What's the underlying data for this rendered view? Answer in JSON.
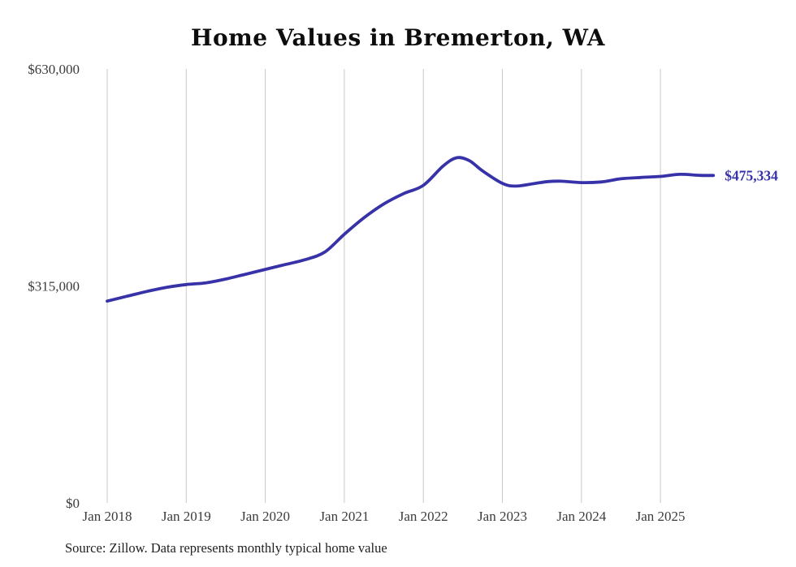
{
  "page": {
    "title": "Home Values in Bremerton, WA",
    "source_note": "Source: Zillow. Data represents monthly typical home value"
  },
  "chart_data": {
    "type": "line",
    "title": "Home Values in Bremerton, WA",
    "xlabel": "",
    "ylabel": "",
    "ylim": [
      0,
      630000
    ],
    "grid": "vertical-only",
    "legend": "none",
    "line_color": "#3732a8",
    "grid_color": "#c9c9c9",
    "end_label": "$475,334",
    "end_value": 475334,
    "y_ticks": [
      {
        "value": 630000,
        "label": "$630,000"
      },
      {
        "value": 315000,
        "label": "$315,000"
      },
      {
        "value": 0,
        "label": "$0"
      }
    ],
    "x_ticks": [
      {
        "t": 2018,
        "label": "Jan 2018"
      },
      {
        "t": 2019,
        "label": "Jan 2019"
      },
      {
        "t": 2020,
        "label": "Jan 2020"
      },
      {
        "t": 2021,
        "label": "Jan 2021"
      },
      {
        "t": 2022,
        "label": "Jan 2022"
      },
      {
        "t": 2023,
        "label": "Jan 2023"
      },
      {
        "t": 2024,
        "label": "Jan 2024"
      },
      {
        "t": 2025,
        "label": "Jan 2025"
      }
    ],
    "series": [
      {
        "name": "Typical home value",
        "points": [
          {
            "t": 2018.0,
            "v": 293000
          },
          {
            "t": 2018.25,
            "v": 300000
          },
          {
            "t": 2018.5,
            "v": 307000
          },
          {
            "t": 2018.75,
            "v": 313000
          },
          {
            "t": 2019.0,
            "v": 317000
          },
          {
            "t": 2019.25,
            "v": 319500
          },
          {
            "t": 2019.5,
            "v": 325000
          },
          {
            "t": 2019.75,
            "v": 332000
          },
          {
            "t": 2020.0,
            "v": 339000
          },
          {
            "t": 2020.25,
            "v": 346000
          },
          {
            "t": 2020.5,
            "v": 353000
          },
          {
            "t": 2020.75,
            "v": 364000
          },
          {
            "t": 2021.0,
            "v": 390000
          },
          {
            "t": 2021.25,
            "v": 414000
          },
          {
            "t": 2021.5,
            "v": 434000
          },
          {
            "t": 2021.75,
            "v": 449000
          },
          {
            "t": 2022.0,
            "v": 461000
          },
          {
            "t": 2022.25,
            "v": 489000
          },
          {
            "t": 2022.42,
            "v": 501000
          },
          {
            "t": 2022.58,
            "v": 497000
          },
          {
            "t": 2022.75,
            "v": 482000
          },
          {
            "t": 2023.0,
            "v": 464000
          },
          {
            "t": 2023.17,
            "v": 460000
          },
          {
            "t": 2023.42,
            "v": 464000
          },
          {
            "t": 2023.58,
            "v": 466500
          },
          {
            "t": 2023.75,
            "v": 467000
          },
          {
            "t": 2024.0,
            "v": 465000
          },
          {
            "t": 2024.25,
            "v": 466000
          },
          {
            "t": 2024.5,
            "v": 470500
          },
          {
            "t": 2024.75,
            "v": 472500
          },
          {
            "t": 2025.0,
            "v": 474000
          },
          {
            "t": 2025.25,
            "v": 477000
          },
          {
            "t": 2025.5,
            "v": 475500
          },
          {
            "t": 2025.67,
            "v": 475334
          }
        ]
      }
    ]
  }
}
